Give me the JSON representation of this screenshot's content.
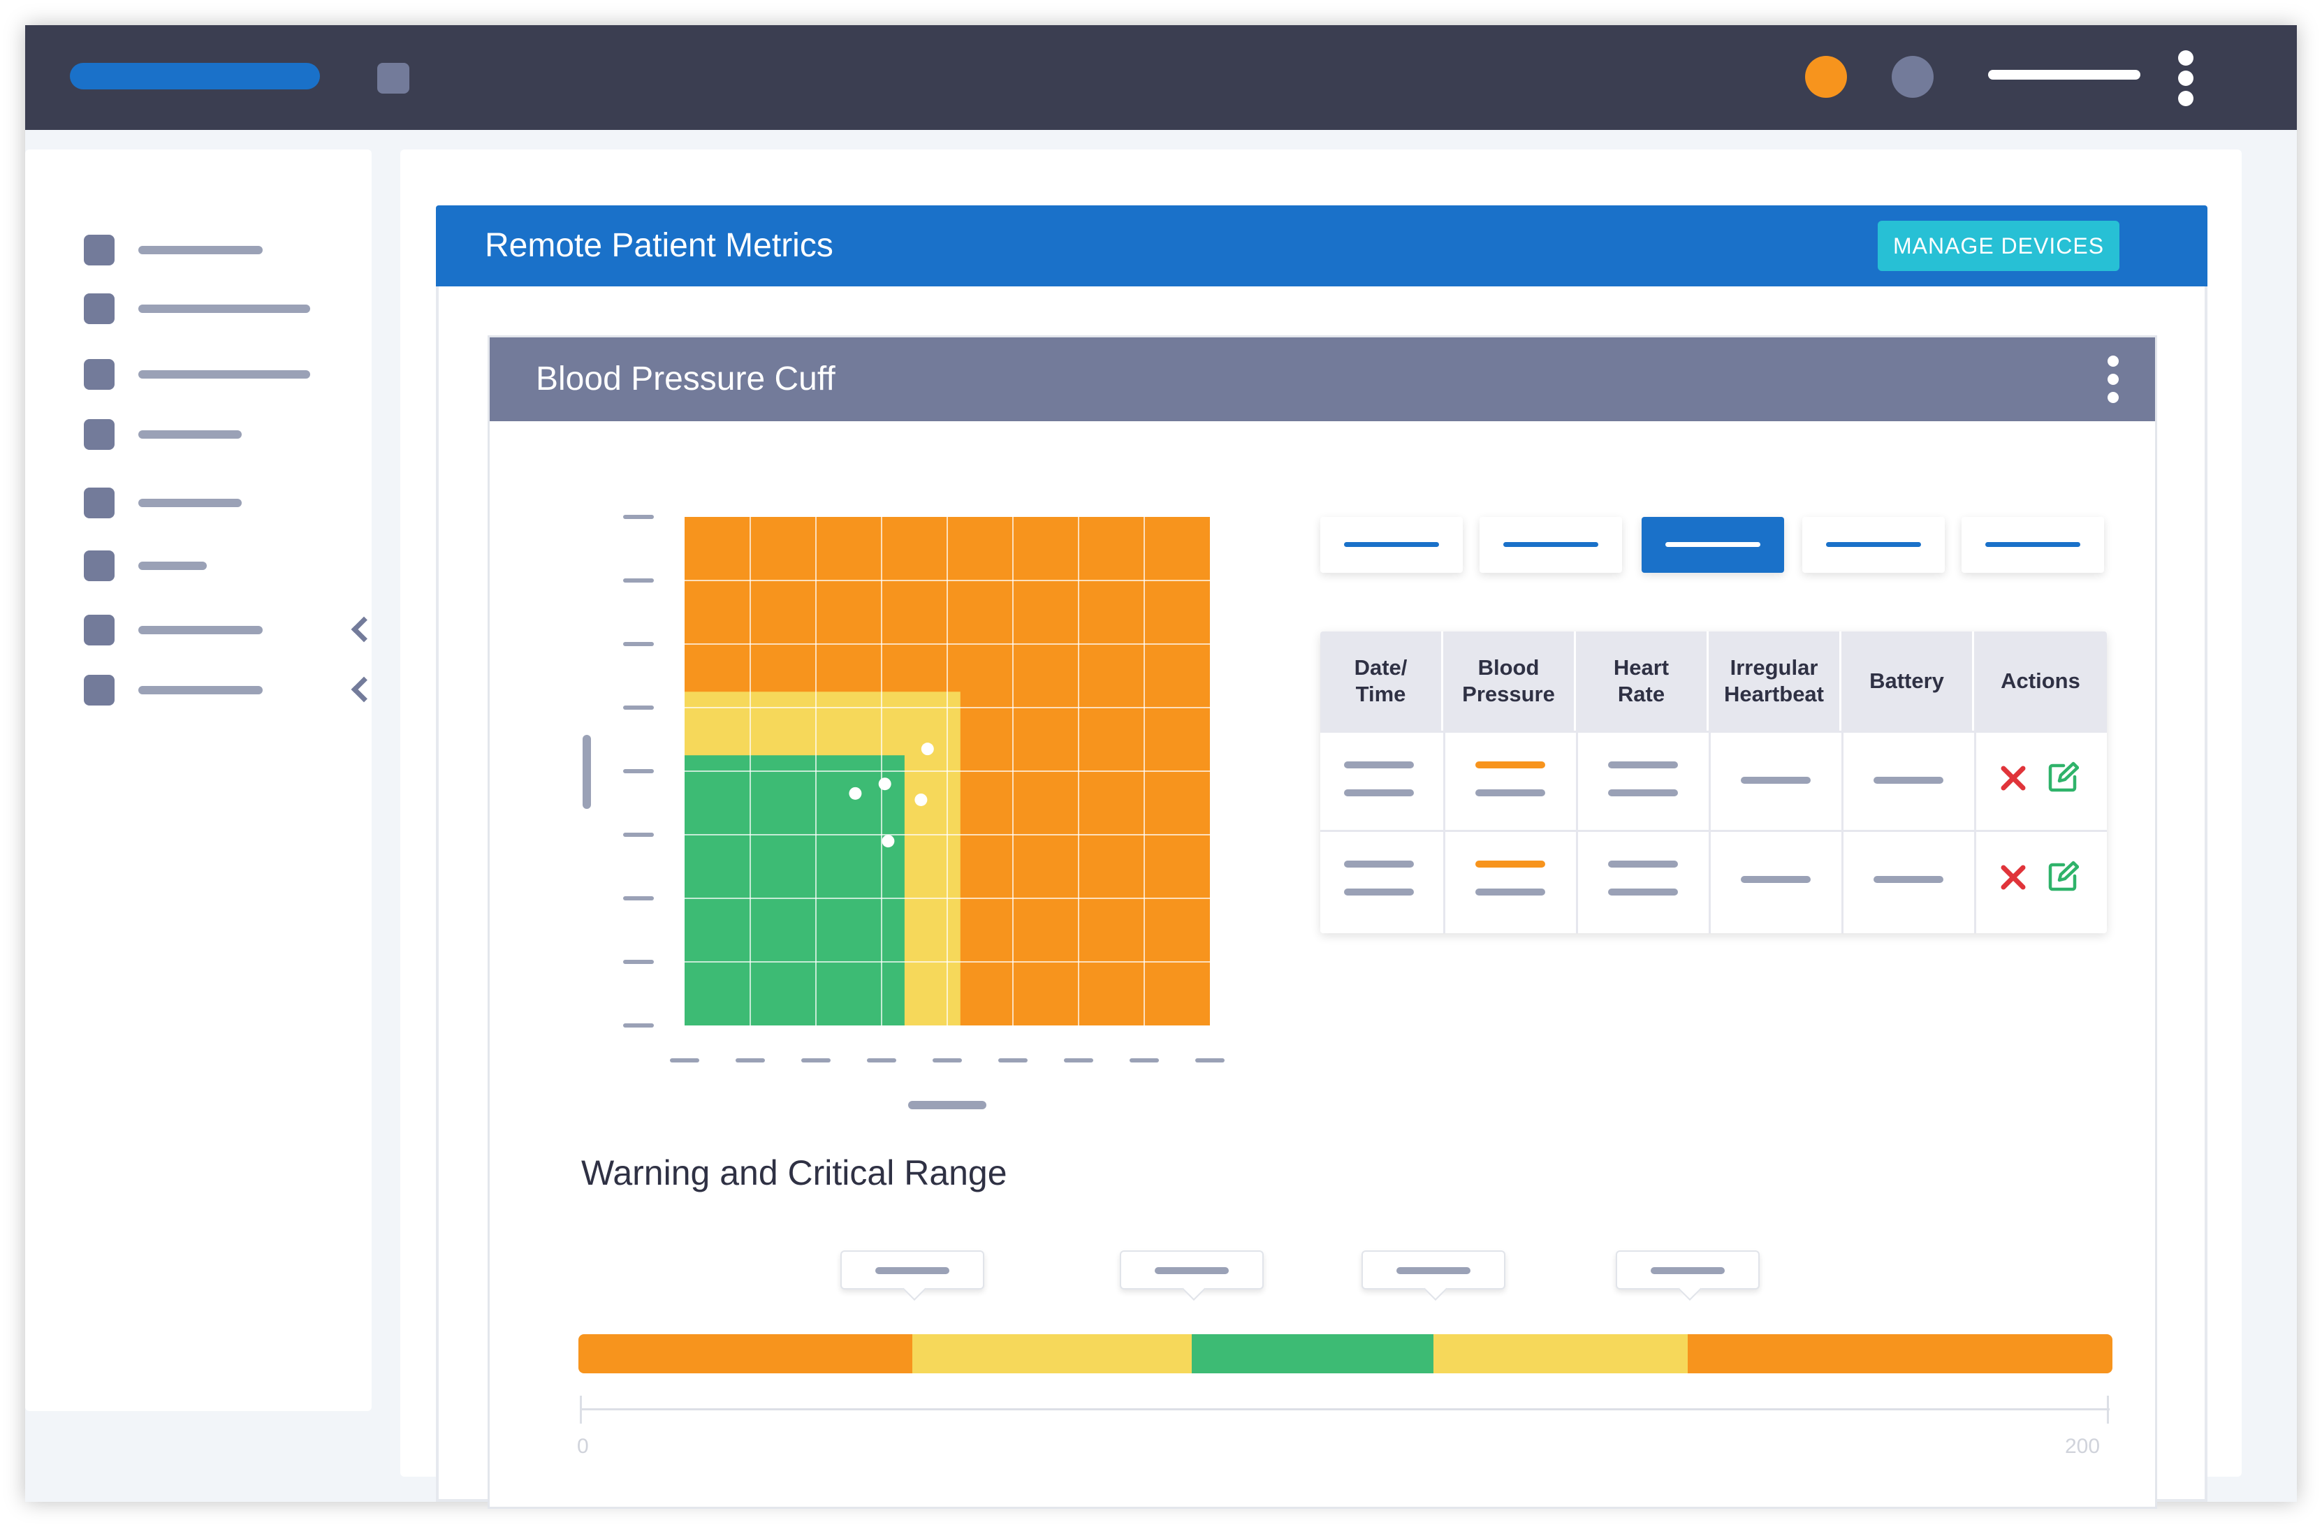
{
  "app": {
    "remote_title": "Remote Patient Metrics",
    "manage_label": "MANAGE DEVICES",
    "device_title": "Blood Pressure Cuff"
  },
  "colors": {
    "topbar": "#3b3e51",
    "accent_blue": "#1a71c9",
    "teal": "#27c0d5",
    "orange": "#f7941d",
    "yellow": "#f6d85a",
    "green": "#3dbb74",
    "slate": "#737b9a",
    "placeholder": "#9aa1b6",
    "delete_red": "#e0343a",
    "edit_green": "#2fb36a"
  },
  "topbar_icons": [
    "notification-dot-orange",
    "user-avatar-dot",
    "more-vertical-icon"
  ],
  "sidebar": {
    "item_count": 8,
    "collapsible_items": [
      6,
      7
    ]
  },
  "tabs": {
    "count": 5,
    "active_index": 2
  },
  "table": {
    "headers": [
      "Date/\nTime",
      "Blood\nPressure",
      "Heart\nRate",
      "Irregular\nHeartbeat",
      "Battery",
      "Actions"
    ],
    "row_count": 2,
    "actions": [
      "delete-icon",
      "edit-icon"
    ]
  },
  "chart_data": {
    "type": "scatter",
    "title": "",
    "xlabel": "",
    "ylabel": "",
    "grid": true,
    "xlim": [
      0,
      8
    ],
    "ylim": [
      0,
      8
    ],
    "zones": [
      {
        "name": "critical",
        "color": "#f7941d",
        "x": [
          0,
          8
        ],
        "y": [
          0,
          8
        ]
      },
      {
        "name": "warning",
        "color": "#f6d85a",
        "x": [
          0,
          4.2
        ],
        "y": [
          0,
          5.25
        ]
      },
      {
        "name": "normal",
        "color": "#3dbb74",
        "x": [
          0,
          3.35
        ],
        "y": [
          0,
          4.25
        ]
      }
    ],
    "series": [
      {
        "points": [
          [
            2.6,
            3.65
          ],
          [
            3.05,
            3.8
          ],
          [
            3.7,
            4.35
          ],
          [
            3.6,
            3.55
          ],
          [
            3.1,
            2.9
          ]
        ]
      }
    ]
  },
  "range": {
    "title": "Warning and Critical Range",
    "min_label": "0",
    "max_label": "200",
    "min": 0,
    "max": 200,
    "segments": [
      {
        "color": "#f7941d",
        "from": 0,
        "to": 43.5
      },
      {
        "color": "#f6d85a",
        "from": 43.5,
        "to": 80
      },
      {
        "color": "#3dbb74",
        "from": 80,
        "to": 111.5
      },
      {
        "color": "#f6d85a",
        "from": 111.5,
        "to": 144.6
      },
      {
        "color": "#f7941d",
        "from": 144.6,
        "to": 200
      }
    ],
    "thresholds": [
      43.5,
      80,
      111.5,
      144.6
    ]
  }
}
